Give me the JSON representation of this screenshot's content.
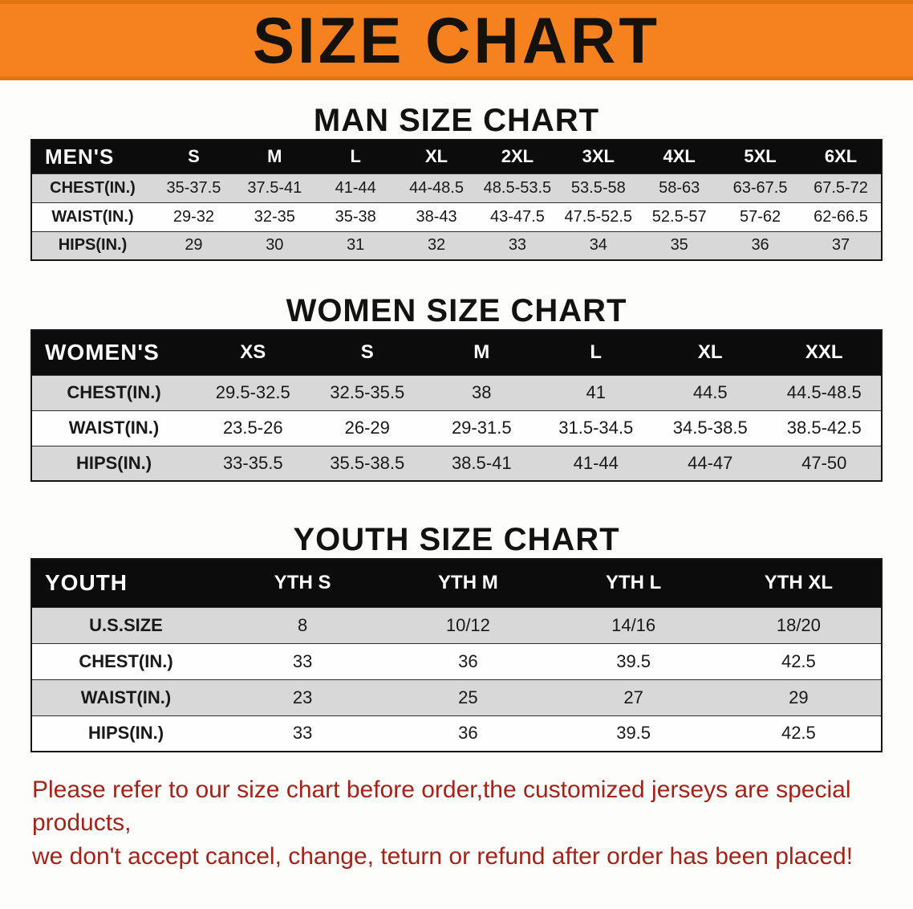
{
  "banner": {
    "title": "SIZE CHART"
  },
  "sections": {
    "men": {
      "heading": "MAN SIZE CHART",
      "corner": "MEN'S",
      "cols": [
        "S",
        "M",
        "L",
        "XL",
        "2XL",
        "3XL",
        "4XL",
        "5XL",
        "6XL"
      ],
      "rows": [
        {
          "label": "CHEST(IN.)",
          "values": [
            "35-37.5",
            "37.5-41",
            "41-44",
            "44-48.5",
            "48.5-53.5",
            "53.5-58",
            "58-63",
            "63-67.5",
            "67.5-72"
          ]
        },
        {
          "label": "WAIST(IN.)",
          "values": [
            "29-32",
            "32-35",
            "35-38",
            "38-43",
            "43-47.5",
            "47.5-52.5",
            "52.5-57",
            "57-62",
            "62-66.5"
          ]
        },
        {
          "label": "HIPS(IN.)",
          "values": [
            "29",
            "30",
            "31",
            "32",
            "33",
            "34",
            "35",
            "36",
            "37"
          ]
        }
      ]
    },
    "women": {
      "heading": "WOMEN SIZE CHART",
      "corner": "WOMEN'S",
      "cols": [
        "XS",
        "S",
        "M",
        "L",
        "XL",
        "XXL"
      ],
      "rows": [
        {
          "label": "CHEST(IN.)",
          "values": [
            "29.5-32.5",
            "32.5-35.5",
            "38",
            "41",
            "44.5",
            "44.5-48.5"
          ]
        },
        {
          "label": "WAIST(IN.)",
          "values": [
            "23.5-26",
            "26-29",
            "29-31.5",
            "31.5-34.5",
            "34.5-38.5",
            "38.5-42.5"
          ]
        },
        {
          "label": "HIPS(IN.)",
          "values": [
            "33-35.5",
            "35.5-38.5",
            "38.5-41",
            "41-44",
            "44-47",
            "47-50"
          ]
        }
      ]
    },
    "youth": {
      "heading": "YOUTH SIZE CHART",
      "corner": "YOUTH",
      "cols": [
        "YTH S",
        "YTH M",
        "YTH L",
        "YTH XL"
      ],
      "rows": [
        {
          "label": "U.S.SIZE",
          "values": [
            "8",
            "10/12",
            "14/16",
            "18/20"
          ]
        },
        {
          "label": "CHEST(IN.)",
          "values": [
            "33",
            "36",
            "39.5",
            "42.5"
          ]
        },
        {
          "label": "WAIST(IN.)",
          "values": [
            "23",
            "25",
            "27",
            "29"
          ]
        },
        {
          "label": "HIPS(IN.)",
          "values": [
            "33",
            "36",
            "39.5",
            "42.5"
          ]
        }
      ]
    }
  },
  "footer": {
    "line1": "Please refer to our size chart before order,the customized jerseys are special products,",
    "line2": "we don't accept cancel, change, teturn or refund after order has been placed!"
  },
  "colors": {
    "banner_bg": "#F5821E",
    "table_header_bg": "#0C0C0C",
    "shaded_row_bg": "#D8D8D8",
    "footer_text": "#A42318"
  },
  "chart_data": [
    {
      "type": "table",
      "title": "MAN SIZE CHART",
      "columns": [
        "MEN'S",
        "S",
        "M",
        "L",
        "XL",
        "2XL",
        "3XL",
        "4XL",
        "5XL",
        "6XL"
      ],
      "rows": [
        [
          "CHEST(IN.)",
          "35-37.5",
          "37.5-41",
          "41-44",
          "44-48.5",
          "48.5-53.5",
          "53.5-58",
          "58-63",
          "63-67.5",
          "67.5-72"
        ],
        [
          "WAIST(IN.)",
          "29-32",
          "32-35",
          "35-38",
          "38-43",
          "43-47.5",
          "47.5-52.5",
          "52.5-57",
          "57-62",
          "62-66.5"
        ],
        [
          "HIPS(IN.)",
          "29",
          "30",
          "31",
          "32",
          "33",
          "34",
          "35",
          "36",
          "37"
        ]
      ]
    },
    {
      "type": "table",
      "title": "WOMEN SIZE CHART",
      "columns": [
        "WOMEN'S",
        "XS",
        "S",
        "M",
        "L",
        "XL",
        "XXL"
      ],
      "rows": [
        [
          "CHEST(IN.)",
          "29.5-32.5",
          "32.5-35.5",
          "38",
          "41",
          "44.5",
          "44.5-48.5"
        ],
        [
          "WAIST(IN.)",
          "23.5-26",
          "26-29",
          "29-31.5",
          "31.5-34.5",
          "34.5-38.5",
          "38.5-42.5"
        ],
        [
          "HIPS(IN.)",
          "33-35.5",
          "35.5-38.5",
          "38.5-41",
          "41-44",
          "44-47",
          "47-50"
        ]
      ]
    },
    {
      "type": "table",
      "title": "YOUTH SIZE CHART",
      "columns": [
        "YOUTH",
        "YTH S",
        "YTH M",
        "YTH L",
        "YTH XL"
      ],
      "rows": [
        [
          "U.S.SIZE",
          "8",
          "10/12",
          "14/16",
          "18/20"
        ],
        [
          "CHEST(IN.)",
          "33",
          "36",
          "39.5",
          "42.5"
        ],
        [
          "WAIST(IN.)",
          "23",
          "25",
          "27",
          "29"
        ],
        [
          "HIPS(IN.)",
          "33",
          "36",
          "39.5",
          "42.5"
        ]
      ]
    }
  ]
}
